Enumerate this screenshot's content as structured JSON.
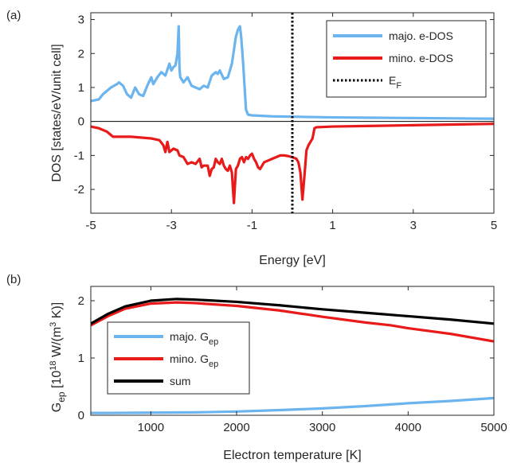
{
  "chart_data": [
    {
      "panel_label": "(a)",
      "type": "line",
      "xlabel": "Energy [eV]",
      "ylabel": "DOS [states/eV/unit cell]",
      "xlim": [
        -5,
        5
      ],
      "ylim": [
        -2.7,
        3.2
      ],
      "x_ticks": [
        -5,
        -3,
        -1,
        1,
        3,
        5
      ],
      "x_tick_labels": [
        "-5",
        "-3",
        "-1",
        "1",
        "3",
        "5"
      ],
      "y_ticks": [
        -2,
        -1,
        0,
        1,
        2,
        3
      ],
      "y_tick_labels": [
        "-2",
        "-1",
        "0",
        "1",
        "2",
        "3"
      ],
      "grid": false,
      "zero_line": 0,
      "legend_position": "top-right",
      "legend": [
        "majo. e-DOS",
        "mino. e-DOS",
        "E_F"
      ],
      "legend_main": [
        "majo. e-DOS",
        "mino. e-DOS",
        "E"
      ],
      "legend_sub": [
        "",
        "",
        "F"
      ],
      "vline": {
        "x": 0,
        "style": "dotted",
        "color": "#000000"
      },
      "series": [
        {
          "name": "majo. e-DOS",
          "color": "#6cb4ee",
          "x": [
            -5.0,
            -4.8,
            -4.7,
            -4.5,
            -4.35,
            -4.3,
            -4.2,
            -4.1,
            -4.0,
            -3.9,
            -3.8,
            -3.7,
            -3.6,
            -3.5,
            -3.45,
            -3.35,
            -3.25,
            -3.15,
            -3.05,
            -3.0,
            -2.95,
            -2.9,
            -2.85,
            -2.82,
            -2.8,
            -2.78,
            -2.75,
            -2.7,
            -2.6,
            -2.5,
            -2.4,
            -2.3,
            -2.2,
            -2.1,
            -2.0,
            -1.9,
            -1.85,
            -1.8,
            -1.7,
            -1.6,
            -1.5,
            -1.45,
            -1.4,
            -1.35,
            -1.3,
            -1.27,
            -1.22,
            -1.15,
            -1.1,
            -1.0,
            -0.5,
            0.0,
            1.0,
            2.0,
            3.0,
            4.0,
            5.0
          ],
          "y": [
            0.6,
            0.65,
            0.8,
            1.0,
            1.1,
            1.15,
            1.05,
            0.8,
            0.7,
            1.0,
            0.8,
            0.75,
            1.05,
            1.3,
            1.1,
            1.3,
            1.45,
            1.35,
            1.7,
            1.5,
            1.6,
            1.65,
            2.0,
            2.8,
            1.55,
            1.3,
            1.25,
            1.15,
            1.3,
            1.05,
            1.0,
            0.95,
            1.05,
            1.0,
            1.35,
            1.45,
            1.4,
            1.5,
            1.25,
            1.3,
            1.7,
            2.1,
            2.5,
            2.7,
            2.8,
            2.5,
            1.7,
            0.35,
            0.2,
            0.18,
            0.15,
            0.14,
            0.12,
            0.11,
            0.1,
            0.09,
            0.08
          ]
        },
        {
          "name": "mino. e-DOS",
          "color": "#e81a1a",
          "x": [
            -5.0,
            -4.8,
            -4.6,
            -4.5,
            -4.45,
            -4.0,
            -3.5,
            -3.3,
            -3.2,
            -3.15,
            -3.1,
            -3.05,
            -3.0,
            -2.95,
            -2.85,
            -2.8,
            -2.7,
            -2.6,
            -2.5,
            -2.4,
            -2.3,
            -2.25,
            -2.2,
            -2.1,
            -2.05,
            -2.0,
            -1.95,
            -1.9,
            -1.85,
            -1.8,
            -1.75,
            -1.7,
            -1.65,
            -1.6,
            -1.55,
            -1.5,
            -1.45,
            -1.42,
            -1.4,
            -1.35,
            -1.3,
            -1.25,
            -1.2,
            -1.15,
            -1.1,
            -1.05,
            -1.0,
            -0.95,
            -0.9,
            -0.85,
            -0.8,
            -0.75,
            -0.7,
            -0.6,
            -0.5,
            -0.4,
            -0.3,
            -0.2,
            -0.1,
            0.0,
            0.1,
            0.15,
            0.2,
            0.25,
            0.3,
            0.35,
            0.4,
            0.5,
            0.55,
            0.6,
            1.0,
            2.0,
            3.0,
            4.0,
            5.0
          ],
          "y": [
            -0.15,
            -0.2,
            -0.3,
            -0.4,
            -0.45,
            -0.45,
            -0.5,
            -0.55,
            -0.7,
            -0.9,
            -0.6,
            -0.9,
            -0.85,
            -0.8,
            -0.85,
            -1.0,
            -1.05,
            -1.25,
            -1.2,
            -1.25,
            -1.1,
            -1.35,
            -1.3,
            -1.3,
            -1.6,
            -1.4,
            -1.35,
            -1.1,
            -1.2,
            -1.25,
            -1.1,
            -1.3,
            -1.4,
            -1.45,
            -1.3,
            -1.5,
            -2.4,
            -1.8,
            -1.4,
            -1.3,
            -1.1,
            -1.05,
            -1.2,
            -1.05,
            -1.1,
            -1.0,
            -0.95,
            -1.1,
            -1.2,
            -1.35,
            -1.4,
            -1.3,
            -1.2,
            -1.15,
            -1.1,
            -1.05,
            -1.0,
            -1.0,
            -1.02,
            -1.05,
            -1.1,
            -1.2,
            -1.5,
            -2.3,
            -1.6,
            -0.85,
            -0.7,
            -0.5,
            -0.2,
            -0.17,
            -0.15,
            -0.13,
            -0.11,
            -0.09,
            -0.07
          ]
        }
      ]
    },
    {
      "panel_label": "(b)",
      "type": "line",
      "xlabel": "Electron temperature [K]",
      "ylabel_main": "G",
      "ylabel_sub": "ep",
      "ylabel_tail": " [10",
      "ylabel_sup": "18",
      "ylabel_tail2": " W/(m",
      "ylabel_sup2": "3",
      "ylabel_tail3": " K)]",
      "xlim": [
        300,
        5000
      ],
      "ylim": [
        0,
        2.25
      ],
      "x_ticks": [
        1000,
        2000,
        3000,
        4000,
        5000
      ],
      "x_tick_labels": [
        "1000",
        "2000",
        "3000",
        "4000",
        "5000"
      ],
      "y_ticks": [
        0,
        1,
        2
      ],
      "y_tick_labels": [
        "0",
        "1",
        "2"
      ],
      "grid": false,
      "legend_position": "center-left",
      "legend_main": [
        "majo. G",
        "mino. G",
        "sum"
      ],
      "legend_sub": [
        "ep",
        "ep",
        ""
      ],
      "series": [
        {
          "name": "majo. G_ep",
          "color": "#6cb4ee",
          "x": [
            300,
            500,
            1000,
            1500,
            2000,
            2500,
            3000,
            3500,
            4000,
            4500,
            5000
          ],
          "y": [
            0.04,
            0.04,
            0.045,
            0.05,
            0.065,
            0.09,
            0.12,
            0.16,
            0.21,
            0.25,
            0.3
          ]
        },
        {
          "name": "mino. G_ep",
          "color": "#e81a1a",
          "x": [
            300,
            500,
            700,
            1000,
            1300,
            1500,
            2000,
            2500,
            3000,
            3500,
            3800,
            4000,
            4500,
            5000
          ],
          "y": [
            1.57,
            1.73,
            1.86,
            1.95,
            1.97,
            1.96,
            1.91,
            1.83,
            1.72,
            1.62,
            1.57,
            1.52,
            1.42,
            1.29
          ]
        },
        {
          "name": "sum",
          "color": "#000000",
          "x": [
            300,
            500,
            700,
            1000,
            1300,
            1500,
            2000,
            2500,
            3000,
            3500,
            4000,
            4500,
            5000
          ],
          "y": [
            1.6,
            1.77,
            1.9,
            2.0,
            2.03,
            2.02,
            1.98,
            1.92,
            1.85,
            1.79,
            1.73,
            1.67,
            1.6
          ]
        }
      ]
    }
  ]
}
